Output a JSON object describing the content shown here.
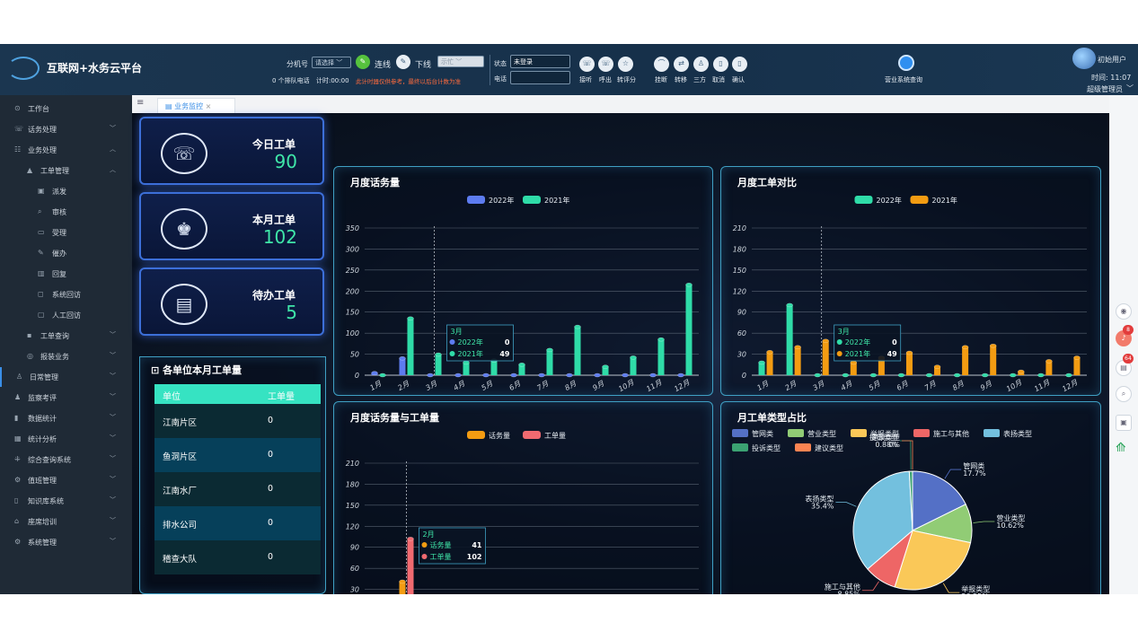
{
  "app": {
    "title": "互联网+水务云平台"
  },
  "toolbar": {
    "ext_label": "分机号",
    "ext_select": "请选择",
    "connect_label": "连线",
    "offline_label": "下线",
    "offline_select": "示忙",
    "queue_text": "0 个排队电话",
    "timer_text": "计时:00:00",
    "timer_warning": "此计时器仅供参考，最终以后台计数为准",
    "status_label": "状态",
    "status_value": "未登录",
    "phone_label": "电话",
    "phone_value": "",
    "call_buttons": [
      "接听",
      "呼出",
      "转评分"
    ],
    "op_buttons": [
      "挂断",
      "转移",
      "三方",
      "取消",
      "确认"
    ],
    "sales_query": "营业系统查询",
    "user_name": "初始用户",
    "time_text": "时间: 11:07",
    "role_text": "超级管理员"
  },
  "sidebar": {
    "items": [
      {
        "label": "工作台",
        "icon": "⊙",
        "level": 0,
        "chevron": ""
      },
      {
        "label": "话务处理",
        "icon": "☏",
        "level": 0,
        "chevron": "﹀"
      },
      {
        "label": "业务处理",
        "icon": "☷",
        "level": 0,
        "chevron": "︿"
      },
      {
        "label": "工单管理",
        "icon": "▲",
        "level": 1,
        "chevron": "︿"
      },
      {
        "label": "派发",
        "icon": "▣",
        "level": 2,
        "chevron": ""
      },
      {
        "label": "审核",
        "icon": "⌕",
        "level": 2,
        "chevron": ""
      },
      {
        "label": "受理",
        "icon": "▭",
        "level": 2,
        "chevron": ""
      },
      {
        "label": "催办",
        "icon": "✎",
        "level": 2,
        "chevron": ""
      },
      {
        "label": "回复",
        "icon": "▥",
        "level": 2,
        "chevron": ""
      },
      {
        "label": "系统回访",
        "icon": "◻",
        "level": 2,
        "chevron": ""
      },
      {
        "label": "人工回访",
        "icon": "▢",
        "level": 2,
        "chevron": ""
      },
      {
        "label": "工单查询",
        "icon": "▪",
        "level": 1,
        "chevron": "﹀"
      },
      {
        "label": "报装业务",
        "icon": "◎",
        "level": 1,
        "chevron": "﹀"
      },
      {
        "label": "日常管理",
        "icon": "♙",
        "level": 0,
        "chevron": "﹀"
      },
      {
        "label": "监察考评",
        "icon": "♟",
        "level": 0,
        "chevron": "﹀"
      },
      {
        "label": "数据统计",
        "icon": "▮",
        "level": 0,
        "chevron": "﹀"
      },
      {
        "label": "统计分析",
        "icon": "▦",
        "level": 0,
        "chevron": "﹀"
      },
      {
        "label": "综合查询系统",
        "icon": "⁜",
        "level": 0,
        "chevron": "﹀"
      },
      {
        "label": "值班管理",
        "icon": "⚙",
        "level": 0,
        "chevron": "﹀"
      },
      {
        "label": "知识库系统",
        "icon": "▯",
        "level": 0,
        "chevron": "﹀"
      },
      {
        "label": "座席培训",
        "icon": "⌂",
        "level": 0,
        "chevron": "﹀"
      },
      {
        "label": "系统管理",
        "icon": "⚙",
        "level": 0,
        "chevron": "﹀"
      }
    ]
  },
  "tab": {
    "label": "业务监控",
    "close": "×"
  },
  "rightbar": {
    "badges": [
      "8",
      "64"
    ]
  },
  "kpis": [
    {
      "label": "今日工单",
      "value": "90",
      "icon": "☏"
    },
    {
      "label": "本月工单",
      "value": "102",
      "icon": "♚"
    },
    {
      "label": "待办工单",
      "value": "5",
      "icon": "▤"
    }
  ],
  "unit_table": {
    "title": "各单位本月工单量",
    "headers": [
      "单位",
      "工单量"
    ],
    "rows": [
      {
        "unit": "江南片区",
        "count": "0"
      },
      {
        "unit": "鱼洞片区",
        "count": "0"
      },
      {
        "unit": "江南水厂",
        "count": "0"
      },
      {
        "unit": "排水公司",
        "count": "0"
      },
      {
        "unit": "稽查大队",
        "count": "0"
      }
    ]
  },
  "chart_data": [
    {
      "type": "bar",
      "title": "月度话务量",
      "categories": [
        "1月",
        "2月",
        "3月",
        "4月",
        "5月",
        "6月",
        "7月",
        "8月",
        "9月",
        "10月",
        "11月",
        "12月"
      ],
      "series": [
        {
          "name": "2022年",
          "color": "#5d7cf0",
          "values": [
            5,
            40,
            0,
            0,
            0,
            0,
            0,
            0,
            0,
            0,
            0,
            0
          ]
        },
        {
          "name": "2021年",
          "color": "#2fdca8",
          "values": [
            0,
            135,
            49,
            30,
            35,
            25,
            60,
            115,
            20,
            42,
            85,
            215
          ]
        }
      ],
      "ylim": [
        0,
        350
      ],
      "yticks": [
        0,
        50,
        100,
        150,
        200,
        250,
        300,
        350
      ],
      "tooltip": {
        "title": "3月",
        "rows": [
          {
            "name": "2022年",
            "value": "0"
          },
          {
            "name": "2021年",
            "value": "49"
          }
        ]
      }
    },
    {
      "type": "bar",
      "title": "月度工单对比",
      "categories": [
        "1月",
        "2月",
        "3月",
        "4月",
        "5月",
        "6月",
        "7月",
        "8月",
        "9月",
        "10月",
        "11月",
        "12月"
      ],
      "series": [
        {
          "name": "2022年",
          "color": "#2fdca8",
          "values": [
            18,
            100,
            0,
            0,
            0,
            0,
            0,
            0,
            0,
            0,
            0,
            0
          ]
        },
        {
          "name": "2021年",
          "color": "#f39c12",
          "values": [
            33,
            40,
            49,
            18,
            25,
            32,
            12,
            40,
            42,
            5,
            20,
            25
          ]
        }
      ],
      "ylim": [
        0,
        210
      ],
      "yticks": [
        0,
        30,
        60,
        90,
        120,
        150,
        180,
        210
      ],
      "tooltip": {
        "title": "3月",
        "rows": [
          {
            "name": "2022年",
            "value": "0"
          },
          {
            "name": "2021年",
            "value": "49"
          }
        ]
      }
    },
    {
      "type": "bar",
      "title": "月度话务量与工单量",
      "categories": [
        "1月",
        "2月",
        "3月",
        "4月",
        "5月",
        "6月",
        "7月",
        "8月",
        "9月",
        "10月",
        "11月",
        "12月"
      ],
      "series": [
        {
          "name": "话务量",
          "color": "#f39c12",
          "values": [
            5,
            41,
            0,
            0,
            0,
            0,
            0,
            0,
            0,
            0,
            0,
            0
          ]
        },
        {
          "name": "工单量",
          "color": "#f06a70",
          "values": [
            18,
            102,
            0,
            0,
            0,
            0,
            0,
            0,
            0,
            0,
            0,
            0
          ]
        }
      ],
      "ylim": [
        0,
        210
      ],
      "yticks": [
        0,
        30,
        60,
        90,
        120,
        150,
        180,
        210
      ],
      "tooltip": {
        "title": "2月",
        "rows": [
          {
            "name": "话务量",
            "value": "41"
          },
          {
            "name": "工单量",
            "value": "102"
          }
        ]
      }
    },
    {
      "type": "pie",
      "title": "月工单类型占比",
      "slices": [
        {
          "name": "管网类",
          "value": 17.7,
          "label": "17.7%",
          "color": "#5470c6"
        },
        {
          "name": "营业类型",
          "value": 10.62,
          "label": "10.62%",
          "color": "#91cc75"
        },
        {
          "name": "举报类型",
          "value": 26.55,
          "label": "26.55%",
          "color": "#fac858"
        },
        {
          "name": "施工与其他",
          "value": 8.85,
          "label": "8.85%",
          "color": "#ee6666"
        },
        {
          "name": "表扬类型",
          "value": 35.4,
          "label": "35.4%",
          "color": "#73c0de"
        },
        {
          "name": "投诉类型",
          "value": 0.88,
          "label": "0.88%",
          "color": "#3ba272"
        },
        {
          "name": "建议类型",
          "value": 0,
          "label": "0%",
          "color": "#fc8452"
        }
      ]
    }
  ]
}
